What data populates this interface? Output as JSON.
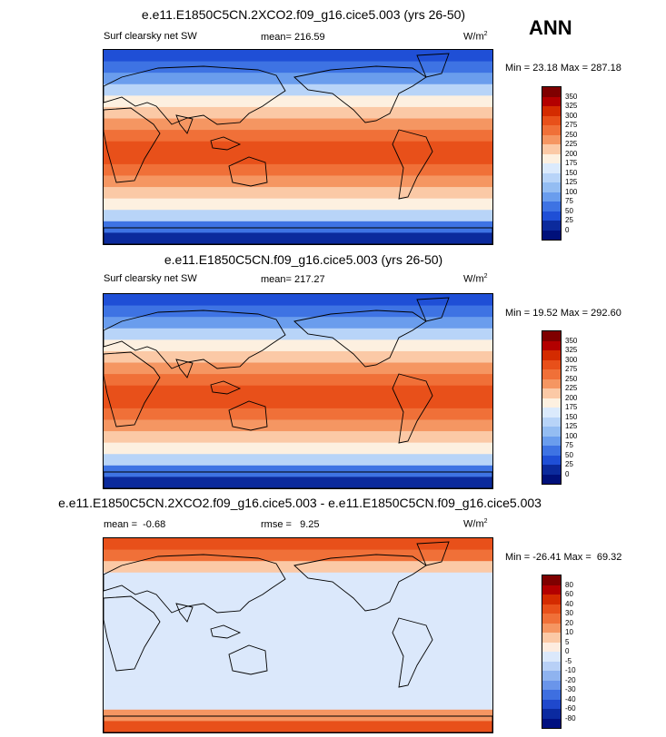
{
  "season": "ANN",
  "panels": [
    {
      "title": "e.e11.E1850C5CN.2XCO2.f09_g16.cice5.003 (yrs 26-50)",
      "left_label": "Surf clearsky net SW",
      "center_label": "mean= 216.59",
      "units": "W/m",
      "units_sup": "2",
      "minmax": "Min = 23.18 Max = 287.18",
      "colorbar": {
        "labels": [
          "350",
          "325",
          "300",
          "275",
          "250",
          "225",
          "200",
          "175",
          "150",
          "125",
          "100",
          "75",
          "50",
          "25",
          "0"
        ],
        "colors": [
          "#7f0000",
          "#b30000",
          "#d42b00",
          "#e8501a",
          "#f07038",
          "#f59662",
          "#fbc9a6",
          "#fdf0e0",
          "#dbeafc",
          "#b8d4f8",
          "#94bdf2",
          "#6a9ded",
          "#3e73e3",
          "#1f4fd6",
          "#0b2a9c",
          "#00107a"
        ]
      },
      "bands": [
        "#1f4fd6",
        "#3e73e3",
        "#6a9ded",
        "#b8d4f8",
        "#fdf0e0",
        "#fbc9a6",
        "#f59662",
        "#f07038",
        "#e8501a",
        "#e8501a",
        "#f07038",
        "#f59662",
        "#fbc9a6",
        "#fdf0e0",
        "#b8d4f8",
        "#3e73e3",
        "#0b2a9c"
      ]
    },
    {
      "title": "e.e11.E1850C5CN.f09_g16.cice5.003 (yrs 26-50)",
      "left_label": "Surf clearsky net SW",
      "center_label": "mean= 217.27",
      "units": "W/m",
      "units_sup": "2",
      "minmax": "Min = 19.52 Max = 292.60",
      "colorbar": {
        "labels": [
          "350",
          "325",
          "300",
          "275",
          "250",
          "225",
          "200",
          "175",
          "150",
          "125",
          "100",
          "75",
          "50",
          "25",
          "0"
        ],
        "colors": [
          "#7f0000",
          "#b30000",
          "#d42b00",
          "#e8501a",
          "#f07038",
          "#f59662",
          "#fbc9a6",
          "#fdf0e0",
          "#dbeafc",
          "#b8d4f8",
          "#94bdf2",
          "#6a9ded",
          "#3e73e3",
          "#1f4fd6",
          "#0b2a9c",
          "#00107a"
        ]
      },
      "bands": [
        "#1f4fd6",
        "#3e73e3",
        "#6a9ded",
        "#b8d4f8",
        "#fdf0e0",
        "#fbc9a6",
        "#f59662",
        "#f07038",
        "#e8501a",
        "#e8501a",
        "#f07038",
        "#f59662",
        "#fbc9a6",
        "#fdf0e0",
        "#b8d4f8",
        "#3e73e3",
        "#0b2a9c"
      ]
    },
    {
      "title": "e.e11.E1850C5CN.2XCO2.f09_g16.cice5.003 - e.e11.E1850C5CN.f09_g16.cice5.003",
      "left_label": "mean =  -0.68",
      "center_label": "rmse =   9.25",
      "units": "W/m",
      "units_sup": "2",
      "minmax": "Min = -26.41 Max =  69.32",
      "colorbar": {
        "labels": [
          "80",
          "60",
          "40",
          "30",
          "20",
          "10",
          "5",
          "0",
          "-5",
          "-10",
          "-20",
          "-30",
          "-40",
          "-60",
          "-80"
        ],
        "colors": [
          "#7f0000",
          "#b30000",
          "#d42b00",
          "#e8501a",
          "#f07038",
          "#f59662",
          "#fbc9a6",
          "#fdece0",
          "#dbe8fb",
          "#b8d0f6",
          "#8fb3ef",
          "#6a95ea",
          "#3e6fe0",
          "#1f48cc",
          "#0b2aa0",
          "#001080"
        ]
      },
      "bands": [
        "#e8501a",
        "#f07038",
        "#fbc9a6",
        "#dbe8fb",
        "#dbe8fb",
        "#dbe8fb",
        "#dbe8fb",
        "#dbe8fb",
        "#dbe8fb",
        "#dbe8fb",
        "#dbe8fb",
        "#dbe8fb",
        "#dbe8fb",
        "#dbe8fb",
        "#dbe8fb",
        "#f59662",
        "#e8501a"
      ]
    }
  ]
}
